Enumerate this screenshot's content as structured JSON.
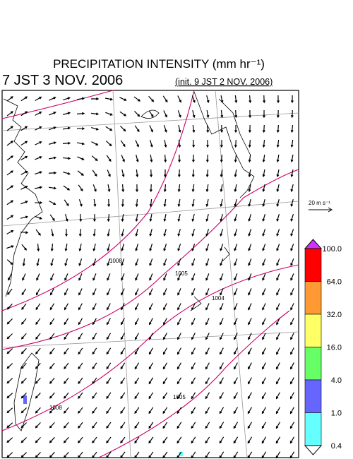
{
  "header": {
    "title": "PRECIPITATION INTENSITY (mm hr⁻¹)",
    "valid_time": "7 JST 3 NOV. 2006",
    "init_time": "(init. 9 JST 2 NOV. 2006)"
  },
  "reference_vector": {
    "label": "20 m s⁻¹"
  },
  "contour_labels": [
    "1008",
    "1005",
    "1004",
    "1005",
    "1008"
  ],
  "colorbar": {
    "labels": [
      "100.0",
      "64.0",
      "32.0",
      "16.0",
      "4.0",
      "1.0",
      "0.4"
    ],
    "colors": [
      "#cc33ff",
      "#ff0000",
      "#ff9933",
      "#ffff66",
      "#66ff66",
      "#6666ff",
      "#66ffff",
      "#ffffff"
    ]
  }
}
